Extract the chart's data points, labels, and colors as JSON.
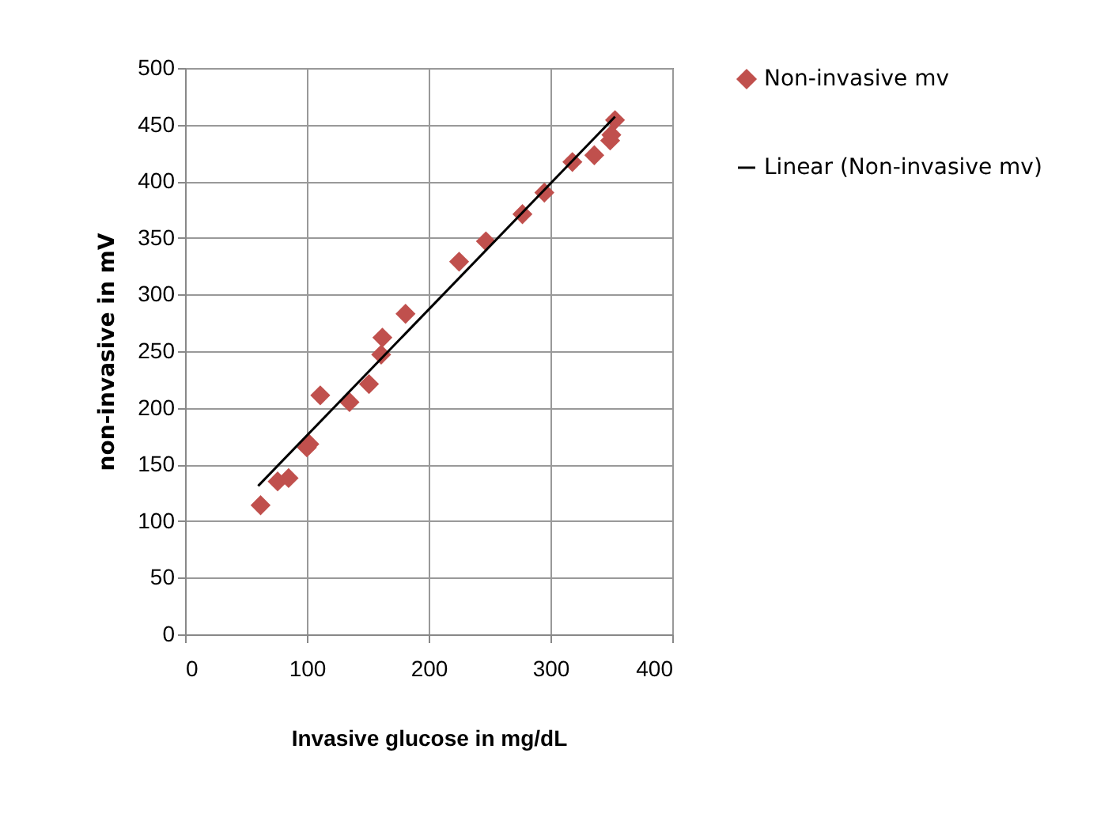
{
  "chart_data": {
    "type": "scatter",
    "xlabel": "Invasive glucose  in mg/dL",
    "ylabel": "non-invasive  in  mV",
    "xlim": [
      0,
      400
    ],
    "xticks": [
      0,
      100,
      200,
      300,
      400
    ],
    "ylim": [
      0,
      500
    ],
    "yticks": [
      0,
      50,
      100,
      150,
      200,
      250,
      300,
      350,
      400,
      450,
      500
    ],
    "grid": true,
    "legend": "right",
    "series": [
      {
        "name": "Non-invasive mv",
        "marker": "diamond",
        "color": "#c0504d",
        "x": [
          62,
          76,
          85,
          100,
          102,
          111,
          135,
          151,
          161,
          162,
          181,
          225,
          247,
          277,
          295,
          318,
          336,
          349,
          350,
          353
        ],
        "values": [
          114,
          135,
          138,
          165,
          168,
          211,
          205,
          221,
          247,
          262,
          283,
          329,
          347,
          371,
          390,
          417,
          423,
          436,
          441,
          454
        ]
      },
      {
        "name": "Linear (Non-invasive mv)",
        "type": "line",
        "color": "#000000",
        "x": [
          60,
          353
        ],
        "values": [
          131,
          457
        ]
      }
    ]
  }
}
